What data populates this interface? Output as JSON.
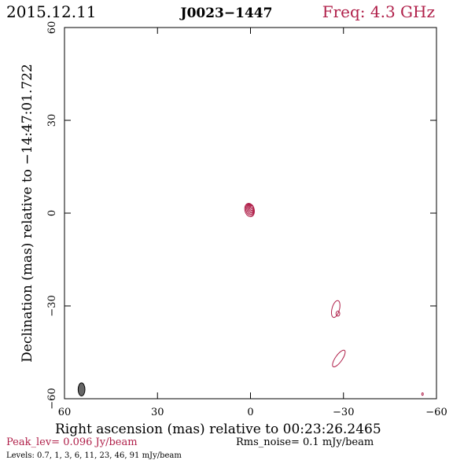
{
  "header": {
    "date": "2015.12.11",
    "source": "J0023−1447",
    "freq": "Freq: 4.3 GHz"
  },
  "axes": {
    "xlabel": "Right ascension (mas) relative to 00:23:26.2465",
    "ylabel": "Declination (mas) relative to −14:47:01.722"
  },
  "footer": {
    "peak": "Peak_lev=  0.096 Jy/beam",
    "rms": "Rms_noise=  0.1 mJy/beam",
    "levels": "Levels: 0.7,   1,   3,   6,   11,   23,   46,   91 mJy/beam"
  },
  "colors": {
    "contour": "#b0204a",
    "accent_text": "#b0204a",
    "beam": "#666666"
  },
  "chart_data": {
    "type": "contour",
    "xlim": [
      60,
      -60
    ],
    "ylim": [
      -60,
      60
    ],
    "x_ticks": [
      60,
      30,
      0,
      -30,
      -60
    ],
    "y_ticks": [
      -60,
      -30,
      0,
      30,
      60
    ],
    "x_tick_labels": [
      "60",
      "30",
      "0",
      "−30",
      "−60"
    ],
    "y_tick_labels": [
      "−60",
      "−30",
      "0",
      "30",
      "60"
    ],
    "peak_jy_per_beam": 0.096,
    "rms_noise_mjy_per_beam": 0.1,
    "levels_mjy_per_beam": [
      0.7,
      1,
      3,
      6,
      11,
      23,
      46,
      91
    ],
    "components": [
      {
        "ra": 0.3,
        "dec": 1.0,
        "major": 2.2,
        "minor": 1.5,
        "pa": -15,
        "levels": 8
      },
      {
        "ra": -27.5,
        "dec": -31.0,
        "major": 2.8,
        "minor": 1.2,
        "pa": 15,
        "levels": 1
      },
      {
        "ra": -28.2,
        "dec": -32.5,
        "major": 0.8,
        "minor": 0.6,
        "pa": 0,
        "levels": 1
      },
      {
        "ra": -28.5,
        "dec": -47.0,
        "major": 3.2,
        "minor": 1.1,
        "pa": 35,
        "levels": 1
      },
      {
        "ra": -55.5,
        "dec": -58.5,
        "major": 0.4,
        "minor": 0.25,
        "pa": 0,
        "levels": 1
      }
    ],
    "beam": {
      "ra": 54.5,
      "dec": -57.0,
      "major": 2.1,
      "minor": 1.1,
      "pa": 0
    }
  }
}
